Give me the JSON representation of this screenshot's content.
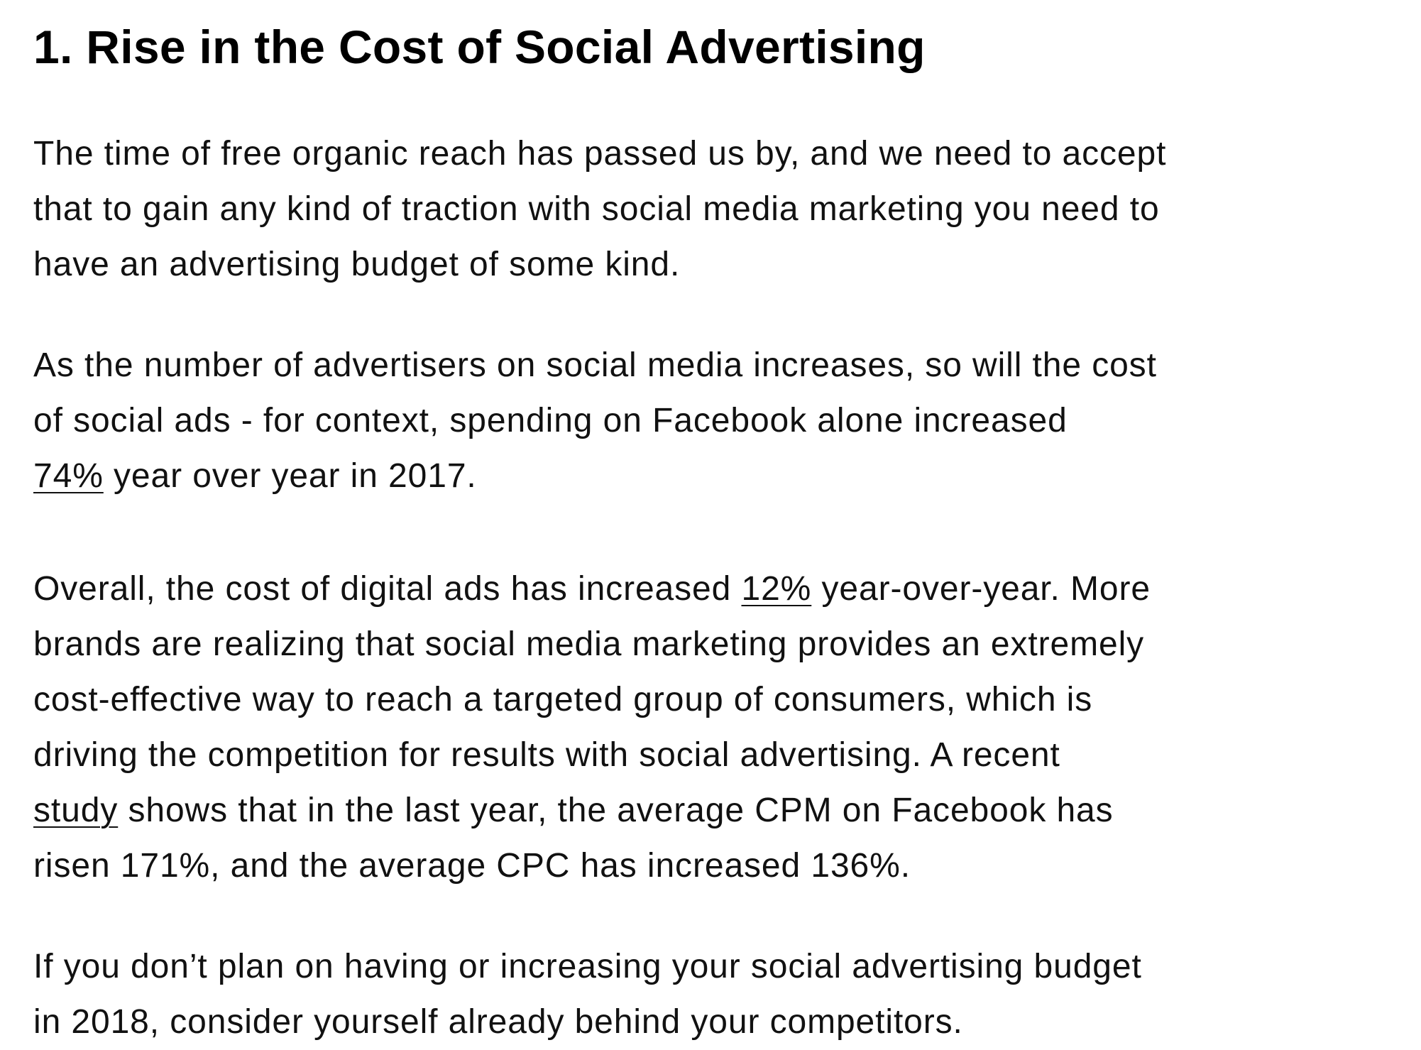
{
  "heading": "1. Rise in the Cost of Social Advertising",
  "p1": {
    "l1": "The time of free organic reach has passed us by, and we need to accept",
    "l2": "that to gain any kind of traction with social media marketing you need to",
    "l3": "have an advertising budget of some kind."
  },
  "p2": {
    "l1": "As the number of advertisers on social media increases, so will the cost",
    "l2": "of social ads - for context, spending on Facebook alone increased",
    "l3_link": "74%",
    "l3_rest": " year over year in 2017."
  },
  "p3": {
    "l1_a": "Overall, the cost of digital ads has increased ",
    "l1_link": "12%",
    "l1_b": " year-over-year. More",
    "l2": "brands are realizing that social media marketing provides an extremely",
    "l3": "cost-effective way to reach a targeted group of consumers, which is",
    "l4": "driving the competition for results with social advertising. A recent",
    "l5_link": "study",
    "l5_rest": " shows that in the last year, the average CPM on Facebook has",
    "l6": "risen 171%, and the average CPC has increased 136%."
  },
  "p4": {
    "l1": "If you don’t plan on having or increasing your social advertising budget",
    "l2": "in 2018, consider yourself already behind your competitors."
  }
}
